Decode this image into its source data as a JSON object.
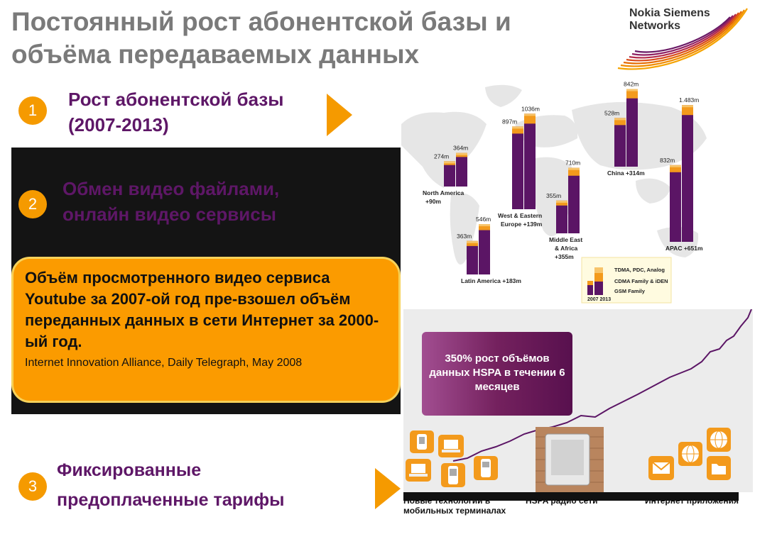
{
  "title": "Постоянный рост абонентской базы и объёма передаваемых данных",
  "logo": {
    "line1": "Nokia Siemens",
    "line2": "Networks"
  },
  "sections": [
    {
      "number": "1",
      "title_line1": "Рост абонентской базы",
      "title_line2": "(2007-2013)"
    },
    {
      "number": "2",
      "title_line1": "Обмен видео файлами,",
      "title_line2": "онлайн видео сервисы"
    },
    {
      "number": "3",
      "title_line1": "Фиксированные",
      "title_line2": "предоплаченные тарифы"
    }
  ],
  "quote": {
    "text": "Объём просмотренного видео сервиса Youtube за 2007-ой год пре-взошел объём переданных данных в сети Интернет за 2000-ый год.",
    "source": "Internet Innovation Alliance, Daily Telegraph, May 2008"
  },
  "chart_data": {
    "type": "bar",
    "regions": [
      {
        "name": "North America",
        "delta": "+90m",
        "v2007": "274m",
        "v2013": "364m"
      },
      {
        "name": "Latin America",
        "delta": "+183m",
        "v2007": "363m",
        "v2013": "546m"
      },
      {
        "name": "West & Eastern Europe",
        "delta": "+139m",
        "v2007": "897m",
        "v2013": "1036m"
      },
      {
        "name": "Middle East & Africa",
        "delta": "+355m",
        "v2007": "355m",
        "v2013": "710m"
      },
      {
        "name": "China",
        "delta": "+314m",
        "v2007": "528m",
        "v2013": "842m"
      },
      {
        "name": "APAC",
        "delta": "+651m",
        "v2007": "832m",
        "v2013": "1.483m"
      }
    ],
    "legend": [
      "TDMA, PDC, Analog",
      "CDMA Family & iDEN",
      "GSM Family"
    ],
    "legend_years": "2007 2013",
    "legend_position": "bottom-right",
    "colors": {
      "gsm": "#5b1565",
      "cdma": "#f39a1c",
      "tdma": "#f7c46a"
    }
  },
  "hspa": {
    "box_text": "350% рост объёмов данных HSPA в течении 6 месяцев",
    "labels": [
      "Новые технологии в мобильных терминалах",
      "HSPA радио сети",
      "Интернет приложения"
    ]
  },
  "colors": {
    "accent": "#f59a00",
    "purple": "#5e1767",
    "title_gray": "#7a7a7a"
  }
}
